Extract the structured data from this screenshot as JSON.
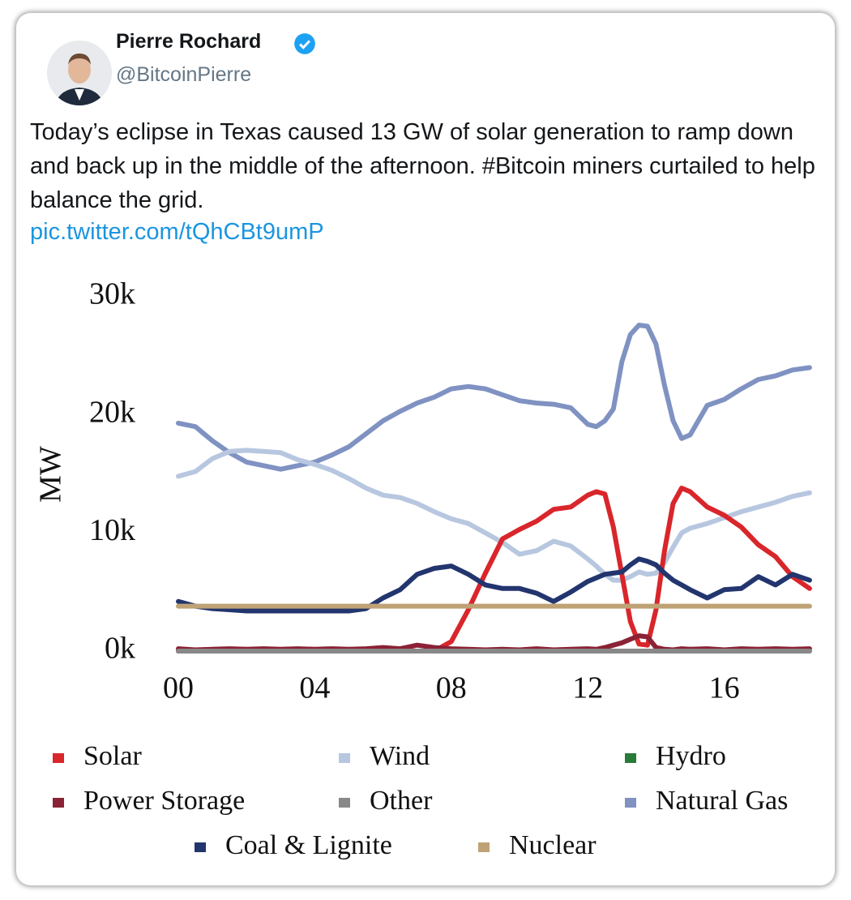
{
  "tweet": {
    "name": "Pierre Rochard",
    "handle": "@BitcoinPierre",
    "text": "Today’s eclipse in Texas caused 13 GW of solar generation to ramp down and back up in the middle of the afternoon. #Bitcoin miners curtailed to help balance the grid.",
    "link": "pic.twitter.com/tQhCBt9umP"
  },
  "chart_data": {
    "type": "line",
    "y_label": "MW",
    "x": [
      0,
      0.5,
      1,
      1.5,
      2,
      2.5,
      3,
      3.5,
      4,
      4.5,
      5,
      5.5,
      6,
      6.5,
      7,
      7.5,
      8,
      8.5,
      9,
      9.5,
      10,
      10.5,
      11,
      11.5,
      12,
      12.25,
      12.5,
      12.75,
      13,
      13.25,
      13.5,
      13.75,
      14,
      14.25,
      14.5,
      14.75,
      15,
      15.5,
      16,
      16.5,
      17,
      17.5,
      18,
      18.5
    ],
    "xlim": [
      0,
      18.5
    ],
    "xticks": [
      {
        "value": 0,
        "label": "00"
      },
      {
        "value": 4,
        "label": "04"
      },
      {
        "value": 8,
        "label": "08"
      },
      12,
      16
    ],
    "ylim": [
      0,
      30000
    ],
    "yticks": [
      {
        "value": 0,
        "label": "0k"
      },
      {
        "value": 10000,
        "label": "10k"
      },
      {
        "value": 20000,
        "label": "20k"
      },
      {
        "value": 30000,
        "label": "30k"
      }
    ],
    "series": [
      {
        "name": "Hydro",
        "color": "#2a7a3a",
        "values": [
          0,
          0,
          0,
          0,
          0,
          0,
          0,
          0,
          0,
          0,
          0,
          0,
          0,
          0,
          0,
          0,
          0,
          0,
          0,
          0,
          0,
          0,
          0,
          0,
          0,
          0,
          0,
          0,
          0,
          0,
          0,
          0,
          0,
          0,
          0,
          0,
          0,
          0,
          0,
          0,
          0,
          0,
          0,
          0
        ]
      },
      {
        "name": "Natural Gas",
        "color": "#7f92c2",
        "values": [
          19300,
          19000,
          17800,
          16800,
          16000,
          15700,
          15400,
          15700,
          16000,
          16600,
          17300,
          18400,
          19500,
          20300,
          21000,
          21500,
          22200,
          22400,
          22200,
          21700,
          21200,
          21000,
          20900,
          20600,
          19200,
          19000,
          19500,
          20500,
          24500,
          26800,
          27600,
          27500,
          26000,
          22500,
          19500,
          18000,
          18300,
          20800,
          21300,
          22200,
          23000,
          23300,
          23800,
          24000
        ]
      },
      {
        "name": "Wind",
        "color": "#b8c7e0",
        "values": [
          14800,
          15200,
          16300,
          16900,
          17000,
          16900,
          16800,
          16200,
          15800,
          15300,
          14600,
          13800,
          13200,
          13000,
          12500,
          11800,
          11200,
          10800,
          10000,
          9200,
          8200,
          8500,
          9300,
          8900,
          7800,
          7200,
          6500,
          6000,
          6000,
          6300,
          6700,
          6500,
          6600,
          7500,
          8800,
          10000,
          10400,
          10800,
          11300,
          11800,
          12200,
          12600,
          13100,
          13400
        ]
      },
      {
        "name": "Solar",
        "color": "#d9262b",
        "values": [
          0,
          0,
          0,
          0,
          0,
          0,
          0,
          0,
          0,
          0,
          0,
          0,
          0,
          0,
          0,
          0,
          800,
          3500,
          6600,
          9500,
          10300,
          11000,
          12000,
          12200,
          13200,
          13500,
          13300,
          10500,
          6500,
          2500,
          600,
          500,
          3500,
          8500,
          12500,
          13800,
          13500,
          12200,
          11500,
          10500,
          9000,
          8000,
          6300,
          5300
        ]
      },
      {
        "name": "Coal & Lignite",
        "color": "#23356e",
        "values": [
          4200,
          3800,
          3600,
          3500,
          3400,
          3400,
          3400,
          3400,
          3400,
          3400,
          3400,
          3600,
          4500,
          5200,
          6500,
          7000,
          7200,
          6500,
          5600,
          5300,
          5300,
          4900,
          4200,
          5000,
          5900,
          6200,
          6500,
          6600,
          6700,
          7300,
          7800,
          7600,
          7300,
          6600,
          6000,
          5600,
          5200,
          4500,
          5200,
          5300,
          6300,
          5600,
          6500,
          6000
        ]
      },
      {
        "name": "Nuclear",
        "color": "#bfa275",
        "values": [
          3800,
          3800,
          3800,
          3800,
          3800,
          3800,
          3800,
          3800,
          3800,
          3800,
          3800,
          3800,
          3800,
          3800,
          3800,
          3800,
          3800,
          3800,
          3800,
          3800,
          3800,
          3800,
          3800,
          3800,
          3800,
          3800,
          3800,
          3800,
          3800,
          3800,
          3800,
          3800,
          3800,
          3800,
          3800,
          3800,
          3800,
          3800,
          3800,
          3800,
          3800,
          3800,
          3800,
          3800
        ]
      },
      {
        "name": "Power Storage",
        "color": "#8b2235",
        "values": [
          200,
          100,
          150,
          200,
          150,
          200,
          150,
          200,
          150,
          200,
          150,
          200,
          300,
          200,
          500,
          300,
          200,
          150,
          100,
          150,
          100,
          200,
          100,
          150,
          200,
          150,
          300,
          500,
          700,
          1000,
          1300,
          1200,
          300,
          150,
          100,
          200,
          150,
          200,
          100,
          200,
          150,
          200,
          150,
          200
        ]
      },
      {
        "name": "Other",
        "color": "#888888",
        "values": [
          0,
          0,
          0,
          0,
          0,
          0,
          0,
          0,
          0,
          0,
          0,
          0,
          0,
          0,
          0,
          0,
          0,
          0,
          0,
          0,
          0,
          0,
          0,
          0,
          0,
          0,
          0,
          0,
          0,
          0,
          0,
          0,
          0,
          0,
          0,
          0,
          0,
          0,
          0,
          0,
          0,
          0,
          0,
          0
        ]
      }
    ]
  }
}
